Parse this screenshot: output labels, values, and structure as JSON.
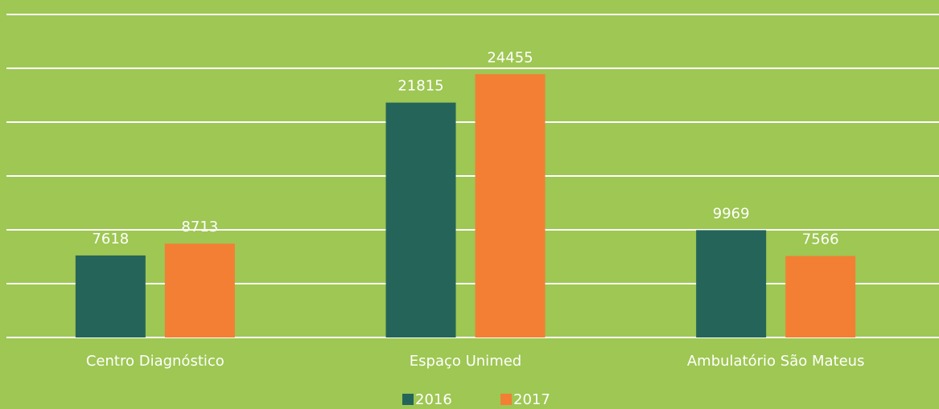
{
  "chart_data": {
    "type": "bar",
    "categories": [
      "Centro Diagnóstico",
      "Espaço Unimed",
      "Ambulatório São Mateus"
    ],
    "series": [
      {
        "name": "2016",
        "color": "#256559",
        "values": [
          7618,
          21815,
          9969
        ]
      },
      {
        "name": "2017",
        "color": "#f37f34",
        "values": [
          8713,
          24455,
          7566
        ]
      }
    ],
    "ylim": [
      0,
      30000
    ],
    "yticks": [
      0,
      5000,
      10000,
      15000,
      20000,
      25000,
      30000
    ],
    "grid": true
  }
}
